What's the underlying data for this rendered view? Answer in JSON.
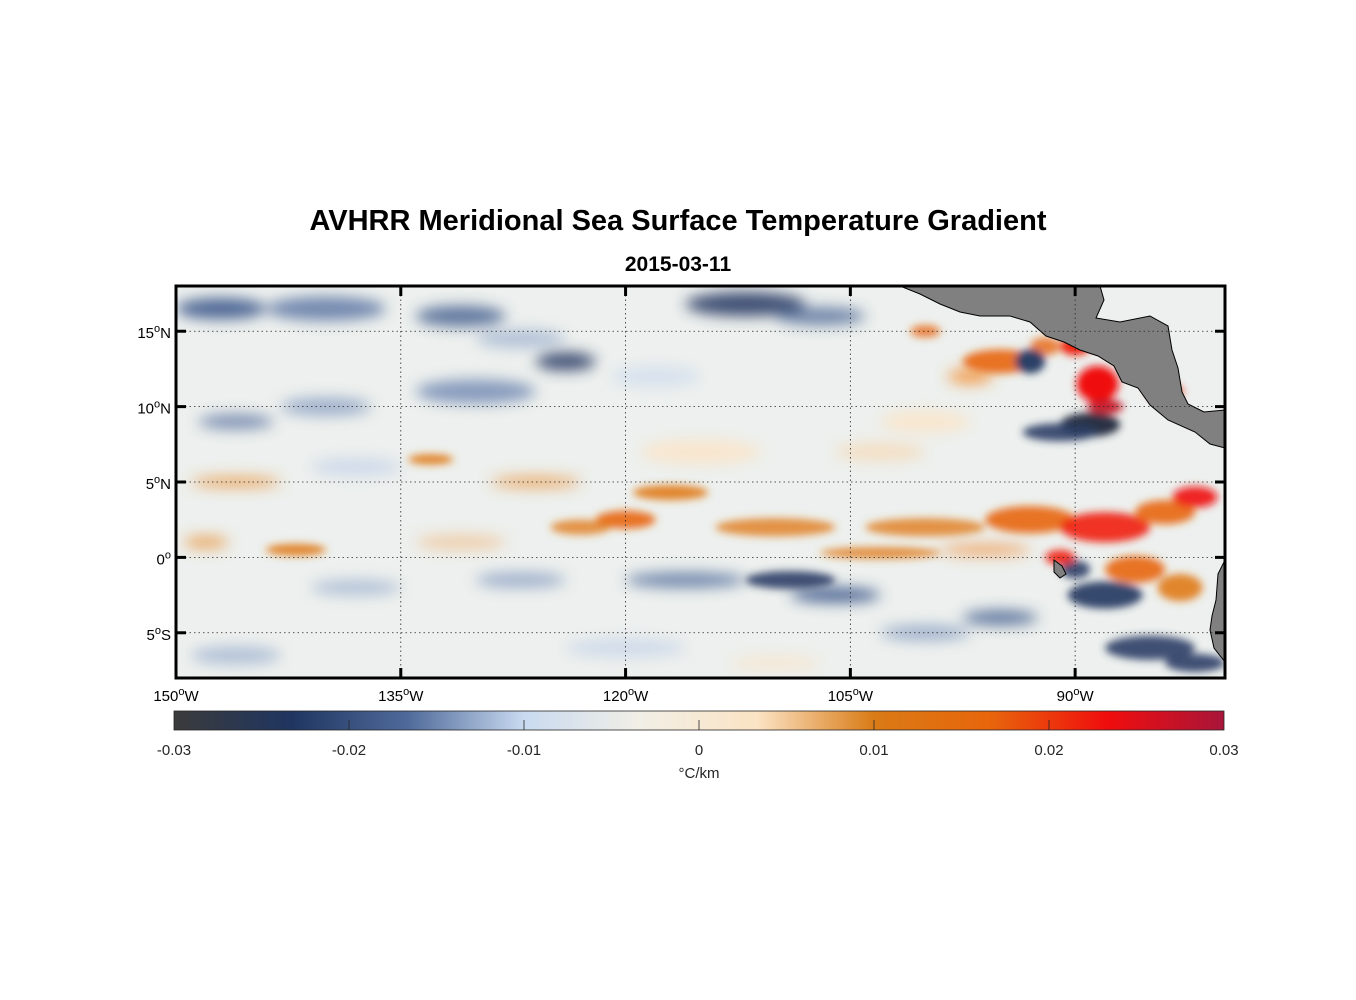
{
  "title": "AVHRR Meridional Sea Surface Temperature Gradient",
  "subtitle": "2015-03-11",
  "map": {
    "lon_range": [
      -150,
      -80
    ],
    "lat_range": [
      -8,
      18
    ],
    "lon_ticks": [
      {
        "value": -150,
        "num": "150",
        "deg": "o",
        "hem": "W"
      },
      {
        "value": -135,
        "num": "135",
        "deg": "o",
        "hem": "W"
      },
      {
        "value": -120,
        "num": "120",
        "deg": "o",
        "hem": "W"
      },
      {
        "value": -105,
        "num": "105",
        "deg": "o",
        "hem": "W"
      },
      {
        "value": -90,
        "num": "90",
        "deg": "o",
        "hem": "W"
      }
    ],
    "lat_ticks": [
      {
        "value": 15,
        "num": "15",
        "deg": "o",
        "hem": "N"
      },
      {
        "value": 10,
        "num": "10",
        "deg": "o",
        "hem": "N"
      },
      {
        "value": 5,
        "num": "5",
        "deg": "o",
        "hem": "N"
      },
      {
        "value": 0,
        "num": "0",
        "deg": "o",
        "hem": ""
      },
      {
        "value": -5,
        "num": "5",
        "deg": "o",
        "hem": "S"
      }
    ],
    "grid": true,
    "land_color": "#808080",
    "ocean_base_color": "#edf0ee"
  },
  "colorbar": {
    "orientation": "horizontal",
    "min": -0.03,
    "max": 0.03,
    "ticks": [
      "-0.03",
      "-0.02",
      "-0.01",
      "0",
      "0.01",
      "0.02",
      "0.03"
    ],
    "tick_values": [
      -0.03,
      -0.02,
      -0.01,
      0,
      0.01,
      0.02,
      0.03
    ],
    "unit_label": "°C/km",
    "colors": [
      "#3b3b3b",
      "#1f3560",
      "#4f6a9a",
      "#c9daf0",
      "#f2efe6",
      "#fbe3c4",
      "#d97b16",
      "#e8650c",
      "#f00d0d",
      "#a8153a"
    ]
  }
}
